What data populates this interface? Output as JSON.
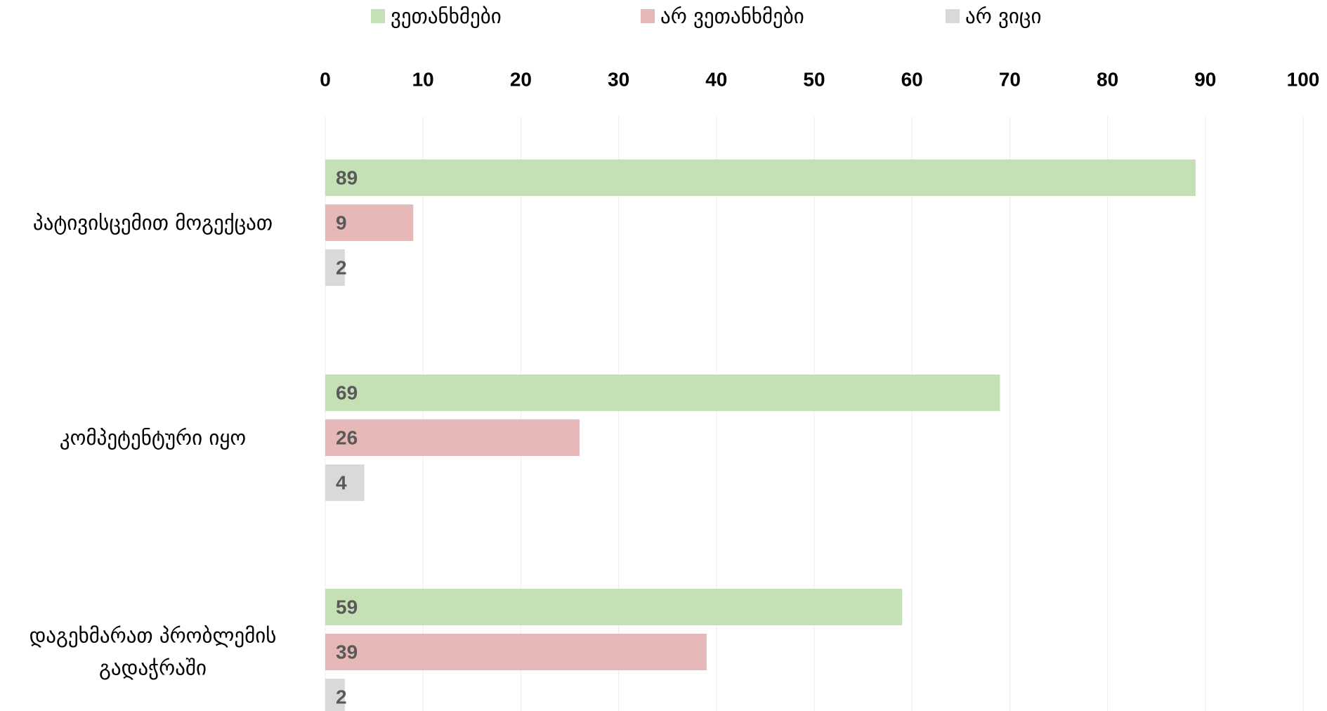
{
  "chart_data": {
    "type": "hbar",
    "categories": [
      "პატივისცემით მოგექცათ",
      "კომპეტენტური იყო",
      "დაგეხმარათ პრობლემის გადაჭრაში"
    ],
    "series": [
      {
        "name": "ვეთანხმები",
        "color": "#c5e0b4",
        "values": [
          89,
          69,
          59
        ]
      },
      {
        "name": "არ ვეთანხმები",
        "color": "#e6b8b7",
        "values": [
          9,
          26,
          39
        ]
      },
      {
        "name": "არ ვიცი",
        "color": "#d9d9d9",
        "values": [
          2,
          4,
          2
        ]
      }
    ],
    "xlim": [
      0,
      100
    ],
    "xticks": [
      0,
      10,
      20,
      30,
      40,
      50,
      60,
      70,
      80,
      90,
      100
    ],
    "grid": true,
    "legend": "top"
  }
}
